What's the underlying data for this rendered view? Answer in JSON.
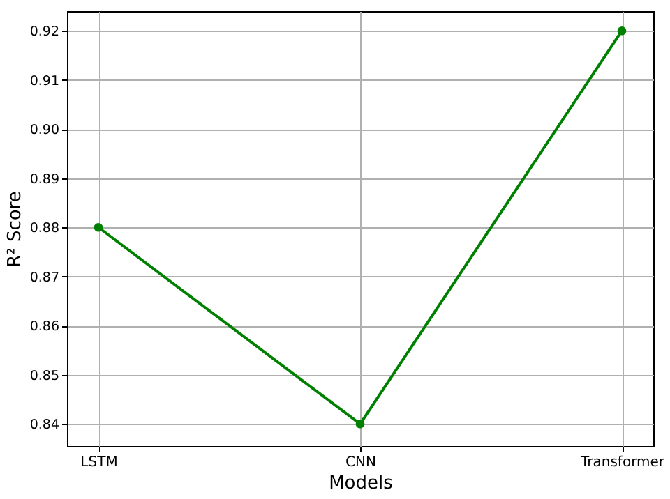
{
  "chart_data": {
    "type": "line",
    "xlabel": "Models",
    "ylabel": "R² Score",
    "categories": [
      "LSTM",
      "CNN",
      "Transformer"
    ],
    "series": [
      {
        "color": "#008000",
        "values": [
          0.88,
          0.84,
          0.92
        ]
      }
    ],
    "ylim": [
      0.8355,
      0.924
    ],
    "yticks": [
      0.84,
      0.85,
      0.86,
      0.87,
      0.88,
      0.89,
      {
        "value": 0.9,
        "label": "0.90"
      },
      0.91,
      0.92
    ],
    "grid": true,
    "marker": "circle",
    "line_style": "solid"
  }
}
